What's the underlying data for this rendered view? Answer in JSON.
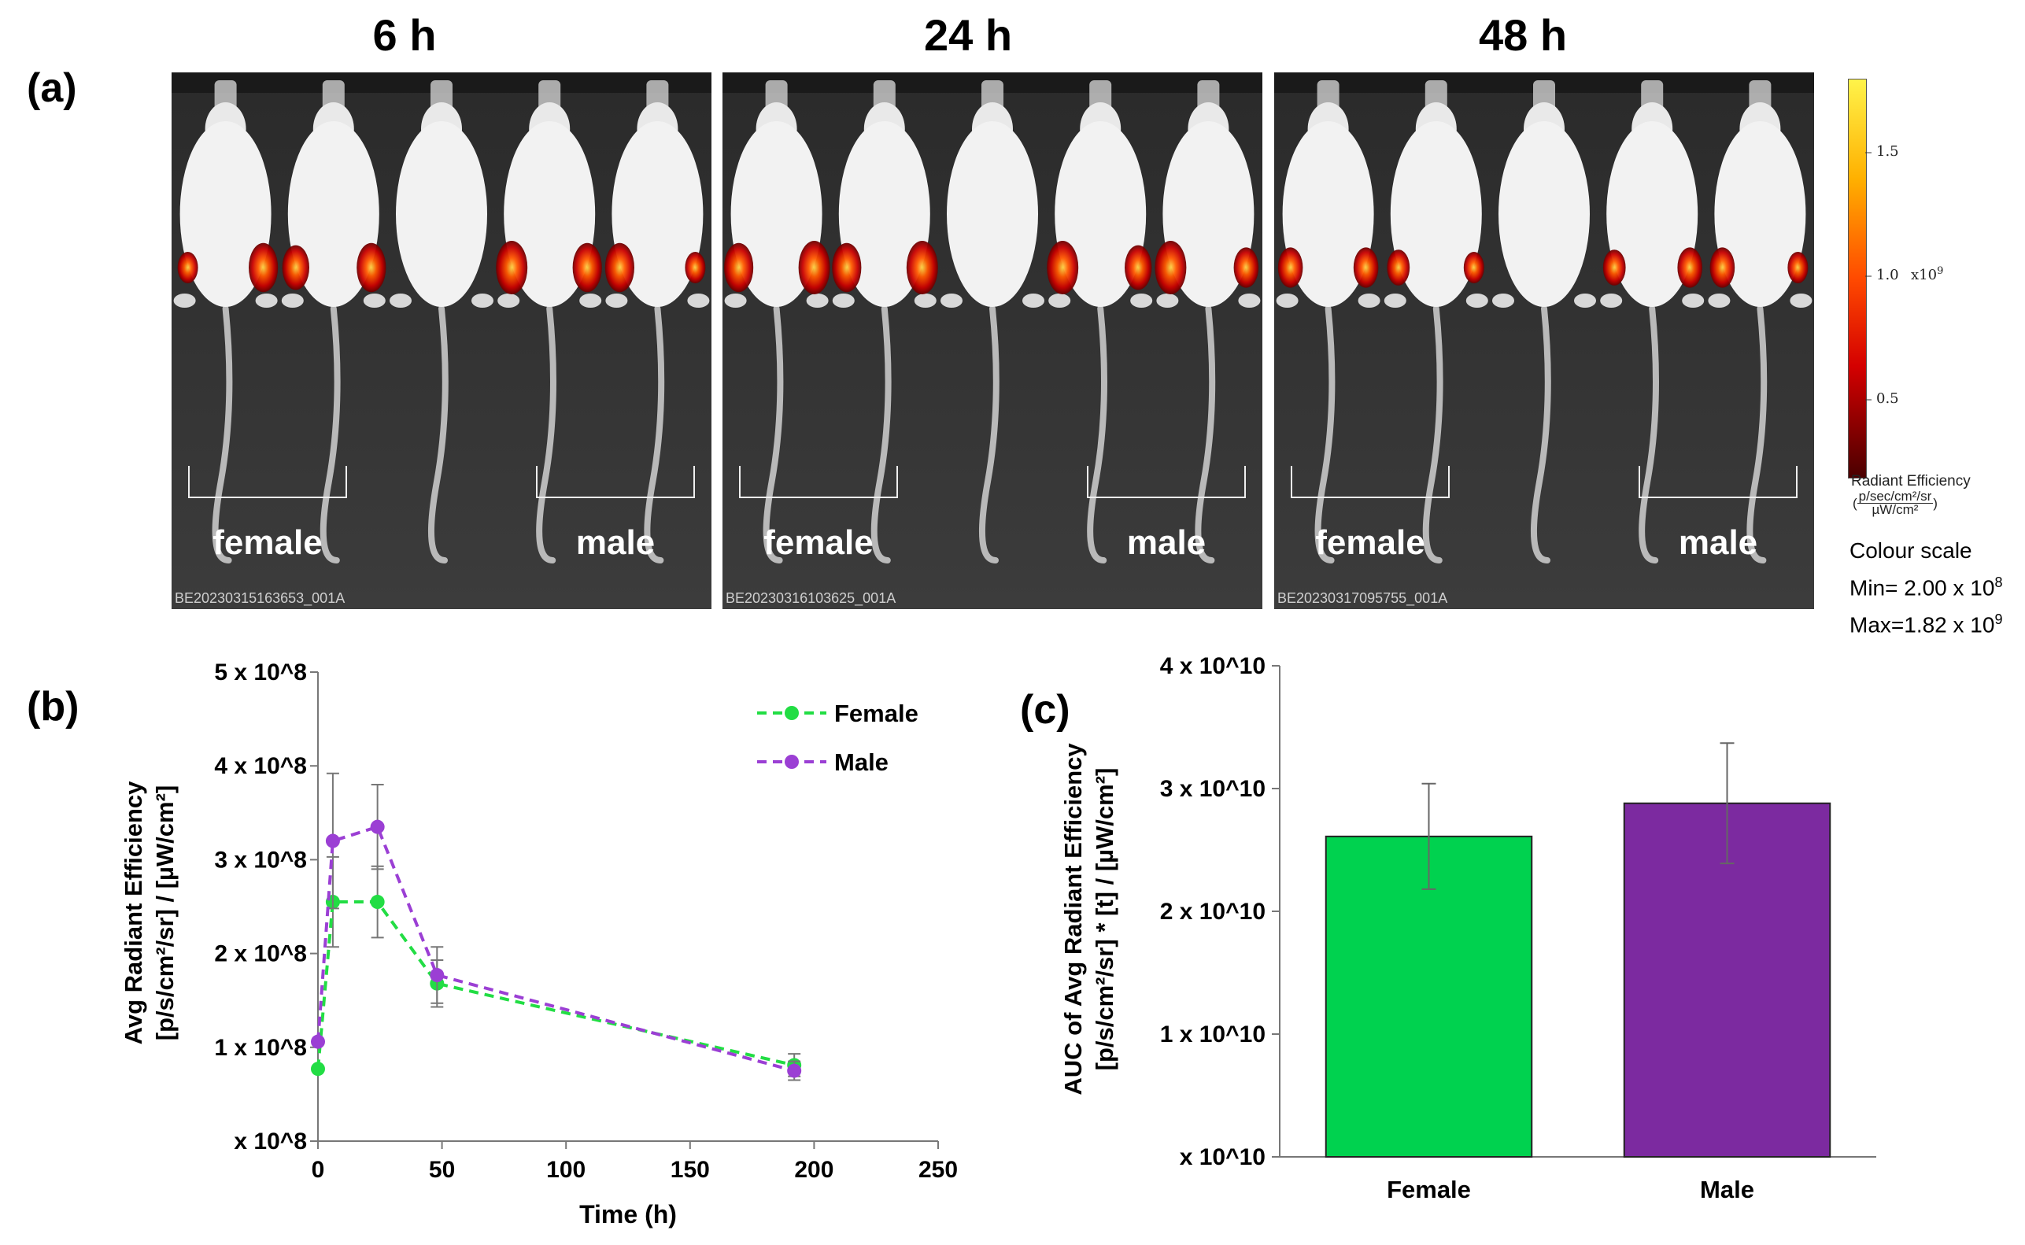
{
  "panel_a": {
    "label": "(a)",
    "timepoints": [
      {
        "title": "6 h",
        "id": "BE20230315163653_001A",
        "group_left": "female",
        "group_right": "male"
      },
      {
        "title": "24 h",
        "id": "BE20230316103625_001A",
        "group_left": "female",
        "group_right": "male"
      },
      {
        "title": "48 h",
        "id": "BE20230317095755_001A",
        "group_left": "female",
        "group_right": "male"
      }
    ],
    "colorbar": {
      "ticks": [
        "1.5",
        "1.0",
        "0.5"
      ],
      "multiplier": "x10",
      "multiplier_exp": "9",
      "title": "Radiant Efficiency",
      "unit_num": "p/sec/cm²/sr",
      "unit_den": "µW/cm²",
      "colors": [
        "#fff34a",
        "#ffb000",
        "#ff4a00",
        "#d40000",
        "#4a0000"
      ]
    },
    "colour_scale": {
      "title": "Colour scale",
      "min_label": "Min= 2.00 x 10",
      "min_exp": "8",
      "max_label": "Max=1.82 x 10",
      "max_exp": "9"
    }
  },
  "chart_data": [
    {
      "panel": "(b)",
      "type": "line",
      "xlabel": "Time (h)",
      "ylabel_line1": "Avg Radiant Efficiency",
      "ylabel_line2": "[p/s/cm²/sr] / [µW/cm²]",
      "xlim": [
        0,
        250
      ],
      "ylim": [
        0,
        500000000
      ],
      "x_ticks": [
        "0",
        "50",
        "100",
        "150",
        "200",
        "250"
      ],
      "y_ticks": [
        "x 10^8",
        "1 x 10^8",
        "2 x 10^8",
        "3 x 10^8",
        "4 x 10^8",
        "5 x 10^8"
      ],
      "legend_position": "top-right",
      "grid": false,
      "series": [
        {
          "name": "Female",
          "color": "#22dd44",
          "x": [
            0,
            6,
            24,
            48,
            192
          ],
          "y": [
            77000000,
            255000000,
            255000000,
            168000000,
            81000000
          ],
          "err": [
            0,
            48000000,
            38000000,
            25000000,
            12000000
          ]
        },
        {
          "name": "Male",
          "color": "#9b3fd4",
          "x": [
            0,
            6,
            24,
            48,
            192
          ],
          "y": [
            106000000,
            320000000,
            335000000,
            177000000,
            75000000
          ],
          "err": [
            0,
            72000000,
            45000000,
            30000000,
            10000000
          ]
        }
      ]
    },
    {
      "panel": "(c)",
      "type": "bar",
      "ylabel_line1": "AUC of Avg Radiant Efficiency",
      "ylabel_line2": "[p/s/cm²/sr] * [t] / [µW/cm²]",
      "ylim": [
        0,
        40000000000
      ],
      "y_ticks": [
        "x 10^10",
        "1 x 10^10",
        "2 x 10^10",
        "3 x 10^10",
        "4 x 10^10"
      ],
      "categories": [
        "Female",
        "Male"
      ],
      "values": [
        26100000000,
        28800000000
      ],
      "errors": [
        4300000000,
        4900000000
      ],
      "colors": [
        "#00d24f",
        "#7c2aa0"
      ],
      "grid": false
    }
  ]
}
